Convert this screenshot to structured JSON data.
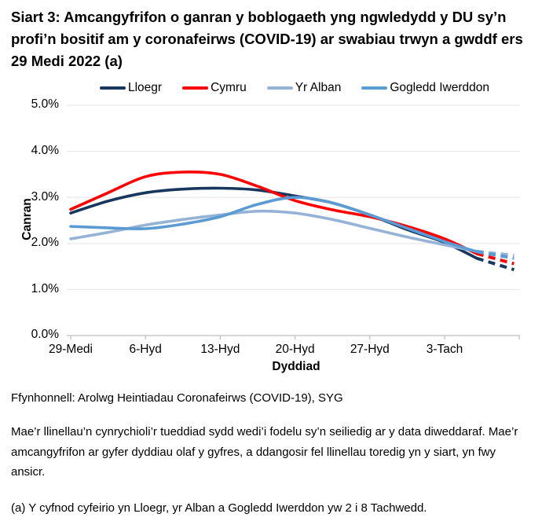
{
  "page": {
    "title": "Siart 3: Amcangyfrifon o ganran y boblogaeth yng ngwledydd y DU sy’n profi’n bositif am y coronafeirws (COVID-19) ar swabiau trwyn a gwddf ers 29 Medi 2022 (a)",
    "source": "Ffynhonnell: Arolwg Heintiadau Coronafeirws (COVID-19), SYG",
    "note": "Mae’r llinellau’n cynrychioli’r tueddiad sydd wedi’i fodelu sy’n seiliedig ar y data diweddaraf. Mae’r amcangyfrifon ar gyfer dyddiau olaf y gyfres, a ddangosir fel llinellau toredig yn y siart, yn fwy ansicr.",
    "footnote_a": "(a) Y cyfnod cyfeirio yn Lloegr, yr Alban a Gogledd Iwerddon yw 2 i 8 Tachwedd."
  },
  "chart_data": {
    "type": "line",
    "title": "Siart 3: Amcangyfrifon o ganran y boblogaeth yng ngwledydd y DU sy’n profi’n bositif am y coronafeirws (COVID-19) ar swabiau trwyn a gwddf ers 29 Medi 2022 (a)",
    "xlabel": "Dyddiad",
    "ylabel": "Canran",
    "ylim": [
      0,
      5
    ],
    "ytick_values": [
      0,
      1,
      2,
      3,
      4,
      5
    ],
    "ytick_labels": [
      "0.0%",
      "1.0%",
      "2.0%",
      "3.0%",
      "4.0%",
      "5.0%"
    ],
    "xtick_labels": [
      "29-Medi",
      "6-Hyd",
      "13-Hyd",
      "20-Hyd",
      "27-Hyd",
      "3-Tach"
    ],
    "xtick_days": [
      0,
      7,
      14,
      21,
      28,
      35
    ],
    "axis_end_tick_day": 42,
    "grid": "horizontal",
    "legend_position": "top",
    "colors": {
      "axis": "#BFBFBF",
      "gridline": "#EBEBEB",
      "text": "#000000"
    },
    "series": [
      {
        "name": "Lloegr",
        "color": "#17375E",
        "days": [
          0,
          3.5,
          7,
          10.5,
          14,
          17.5,
          21,
          24.5,
          28,
          31.5,
          35,
          38
        ],
        "values": [
          2.66,
          2.92,
          3.1,
          3.18,
          3.2,
          3.16,
          3.03,
          2.88,
          2.62,
          2.3,
          2.02,
          1.68
        ],
        "dashed_days": [
          38,
          41.5
        ],
        "dashed_values": [
          1.68,
          1.43
        ]
      },
      {
        "name": "Cymru",
        "color": "#FF0000",
        "days": [
          0,
          3.5,
          7,
          10.5,
          14,
          17.5,
          21,
          24.5,
          28,
          31.5,
          35,
          38
        ],
        "values": [
          2.74,
          3.1,
          3.45,
          3.55,
          3.5,
          3.24,
          2.93,
          2.73,
          2.58,
          2.37,
          2.1,
          1.78
        ],
        "dashed_days": [
          38,
          41.5
        ],
        "dashed_values": [
          1.78,
          1.56
        ]
      },
      {
        "name": "Yr Alban",
        "color": "#95B3D7",
        "days": [
          0,
          3.5,
          7,
          10.5,
          14,
          17.5,
          21,
          24.5,
          28,
          31.5,
          35,
          38
        ],
        "values": [
          2.1,
          2.24,
          2.4,
          2.52,
          2.62,
          2.7,
          2.66,
          2.52,
          2.33,
          2.14,
          1.97,
          1.83
        ],
        "dashed_days": [
          38,
          41.5
        ],
        "dashed_values": [
          1.83,
          1.74
        ]
      },
      {
        "name": "Gogledd Iwerddon",
        "color": "#5B9BD5",
        "days": [
          0,
          3.5,
          7,
          10.5,
          14,
          17.5,
          21,
          24.5,
          28,
          31.5,
          35,
          38
        ],
        "values": [
          2.37,
          2.34,
          2.32,
          2.42,
          2.58,
          2.85,
          3.0,
          2.88,
          2.62,
          2.33,
          2.04,
          1.82
        ],
        "dashed_days": [
          38,
          41.5
        ],
        "dashed_values": [
          1.82,
          1.68
        ]
      }
    ]
  }
}
